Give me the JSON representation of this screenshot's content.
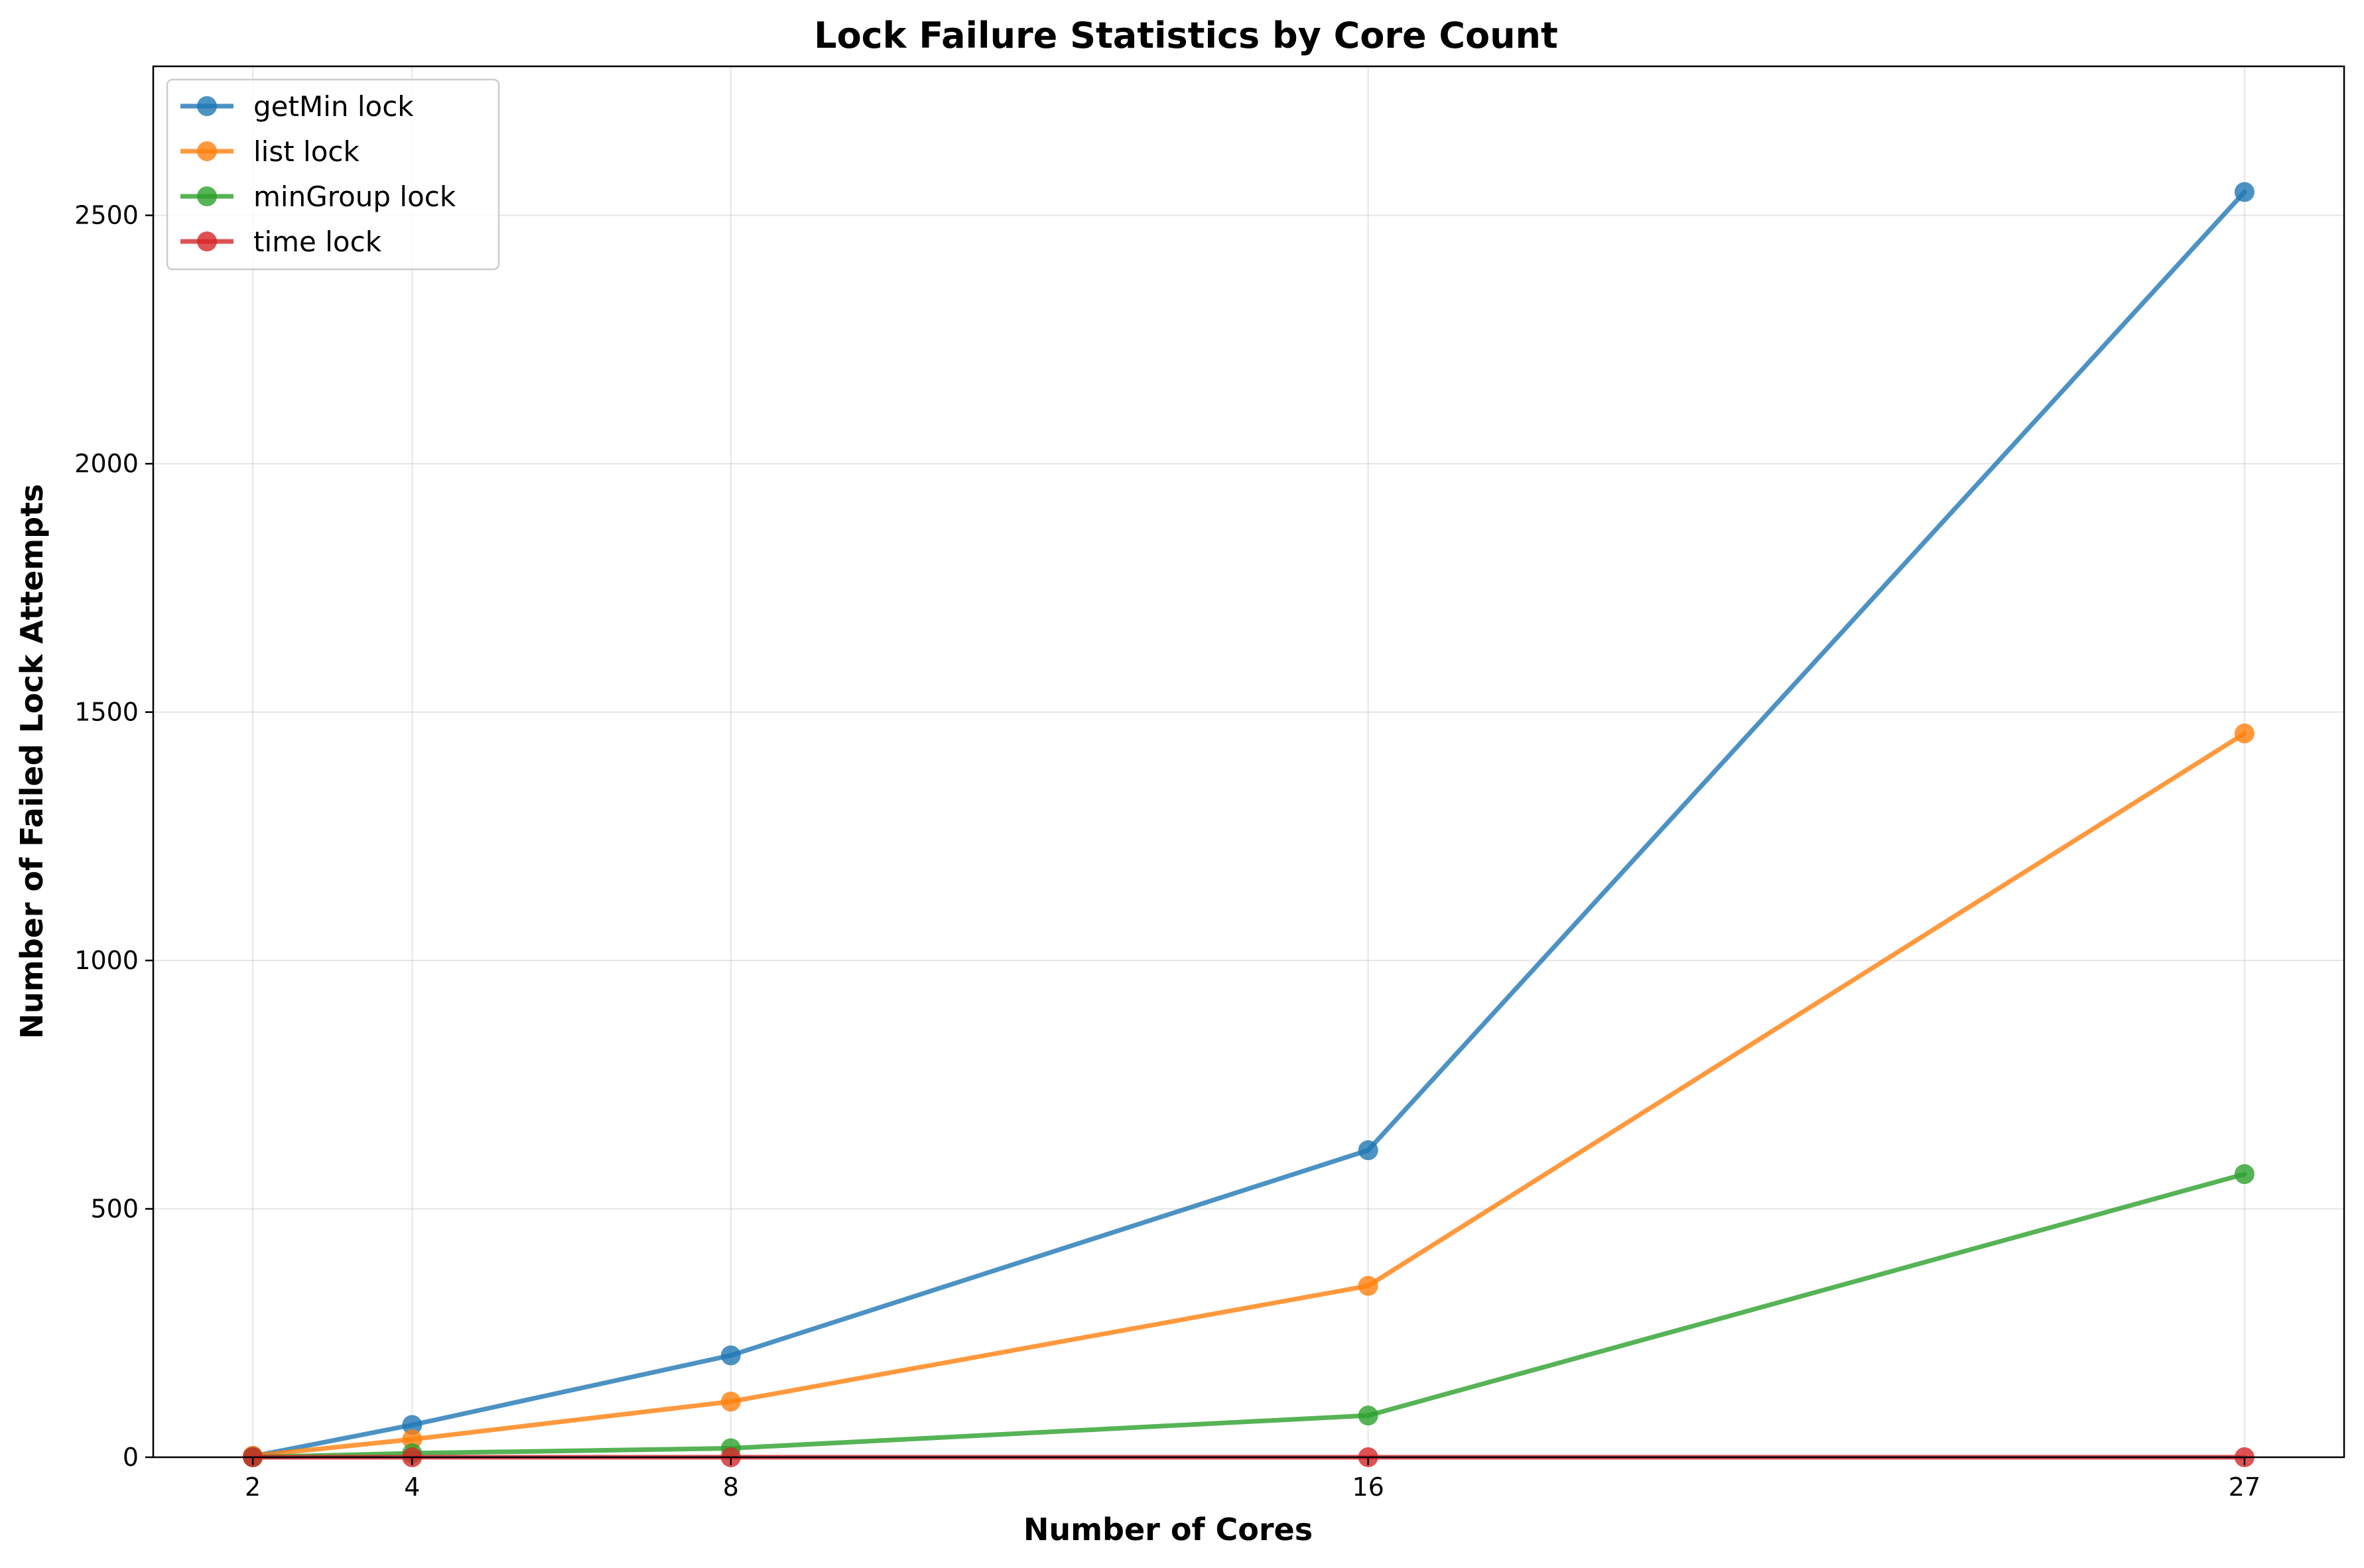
{
  "chart_data": {
    "type": "line",
    "title": "Lock Failure Statistics by Core Count",
    "xlabel": "Number of Cores",
    "ylabel": "Number of Failed Lock Attempts",
    "x": [
      2,
      4,
      8,
      16,
      27
    ],
    "xticks": [
      "2",
      "4",
      "8",
      "16",
      "27"
    ],
    "xlim": [
      0.75,
      28.25
    ],
    "ylim": [
      0,
      2800
    ],
    "yticks": [
      0,
      500,
      1000,
      1500,
      2000,
      2500
    ],
    "grid": true,
    "legend_position": "top-left",
    "series": [
      {
        "name": "getMin lock",
        "color": "#1f77b4",
        "values": [
          2,
          65,
          205,
          618,
          2547
        ]
      },
      {
        "name": "list lock",
        "color": "#ff7f0e",
        "values": [
          3,
          36,
          112,
          345,
          1457
        ]
      },
      {
        "name": "minGroup lock",
        "color": "#2ca02c",
        "values": [
          0,
          8,
          18,
          84,
          570
        ]
      },
      {
        "name": "time lock",
        "color": "#d62728",
        "values": [
          0,
          0,
          0,
          0,
          0
        ]
      }
    ]
  }
}
